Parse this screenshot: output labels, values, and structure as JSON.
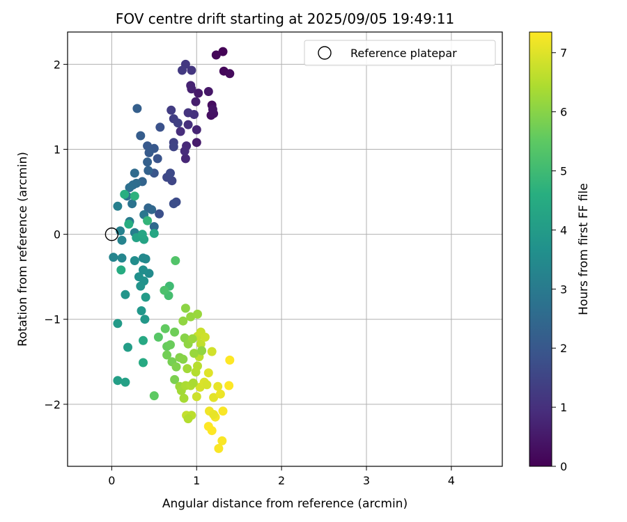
{
  "chart_data": {
    "type": "scatter",
    "title": "FOV centre drift starting at 2025/09/05 19:49:11",
    "xlabel": "Angular distance from reference (arcmin)",
    "ylabel": "Rotation from reference (arcmin)",
    "xlim": [
      -0.52,
      4.6
    ],
    "ylim": [
      -2.73,
      2.38
    ],
    "xticks": [
      0,
      1,
      2,
      3,
      4
    ],
    "yticks": [
      -2,
      -1,
      0,
      1,
      2
    ],
    "xtick_labels": [
      "0",
      "1",
      "2",
      "3",
      "4"
    ],
    "ytick_labels": [
      "−2",
      "−1",
      "0",
      "1",
      "2"
    ],
    "grid": true,
    "legend": {
      "position": "top-right",
      "entries": [
        {
          "label": "Reference platepar",
          "marker": "open-circle"
        }
      ]
    },
    "reference_point": {
      "x": 0,
      "y": 0,
      "label": "Reference platepar"
    },
    "colorbar": {
      "label": "Hours from first FF file",
      "colormap": "viridis",
      "range": [
        0,
        7.35
      ],
      "ticks": [
        0,
        1,
        2,
        3,
        4,
        5,
        6,
        7
      ],
      "tick_labels": [
        "0",
        "1",
        "2",
        "3",
        "4",
        "5",
        "6",
        "7"
      ]
    },
    "series": [
      {
        "name": "FOV centre drift",
        "points": [
          [
            1.31,
            2.15,
            0.05
          ],
          [
            1.23,
            2.11,
            0.1
          ],
          [
            1.32,
            1.92,
            0.15
          ],
          [
            1.39,
            1.89,
            0.2
          ],
          [
            1.18,
            1.52,
            0.25
          ],
          [
            1.17,
            1.4,
            0.3
          ],
          [
            1.2,
            1.42,
            0.35
          ],
          [
            1.19,
            1.47,
            0.4
          ],
          [
            1.14,
            1.68,
            0.45
          ],
          [
            1.02,
            1.66,
            0.5
          ],
          [
            1.0,
            1.08,
            0.55
          ],
          [
            0.99,
            1.56,
            0.6
          ],
          [
            0.94,
            1.71,
            0.65
          ],
          [
            0.93,
            1.75,
            0.7
          ],
          [
            1.0,
            1.23,
            0.75
          ],
          [
            0.87,
            0.89,
            0.8
          ],
          [
            0.88,
            1.04,
            0.85
          ],
          [
            0.86,
            0.98,
            0.9
          ],
          [
            0.81,
            1.21,
            0.95
          ],
          [
            0.9,
            1.29,
            1.0
          ],
          [
            0.97,
            1.41,
            1.05
          ],
          [
            0.9,
            1.43,
            1.1
          ],
          [
            0.94,
            1.93,
            1.15
          ],
          [
            0.87,
            2.0,
            1.2
          ],
          [
            0.83,
            1.93,
            1.25
          ],
          [
            0.7,
            1.46,
            1.3
          ],
          [
            0.73,
            1.36,
            1.35
          ],
          [
            0.78,
            1.31,
            1.4
          ],
          [
            0.73,
            1.08,
            1.45
          ],
          [
            0.73,
            1.03,
            1.5
          ],
          [
            0.71,
            0.63,
            1.55
          ],
          [
            0.65,
            0.67,
            1.6
          ],
          [
            0.69,
            0.72,
            1.65
          ],
          [
            0.76,
            0.38,
            1.7
          ],
          [
            0.73,
            0.36,
            1.75
          ],
          [
            0.56,
            0.24,
            1.8
          ],
          [
            0.57,
            1.26,
            1.85
          ],
          [
            0.54,
            0.89,
            1.9
          ],
          [
            0.5,
            0.72,
            1.95
          ],
          [
            0.5,
            1.01,
            2.0
          ],
          [
            0.42,
            1.04,
            2.05
          ],
          [
            0.44,
            0.96,
            2.1
          ],
          [
            0.34,
            1.16,
            2.15
          ],
          [
            0.3,
            1.48,
            2.2
          ],
          [
            0.42,
            0.85,
            2.25
          ],
          [
            0.43,
            0.75,
            2.3
          ],
          [
            0.36,
            0.62,
            2.35
          ],
          [
            0.43,
            0.31,
            2.4
          ],
          [
            0.47,
            0.29,
            2.45
          ],
          [
            0.5,
            0.09,
            2.5
          ],
          [
            0.27,
            0.72,
            2.55
          ],
          [
            0.29,
            0.6,
            2.6
          ],
          [
            0.25,
            0.58,
            2.65
          ],
          [
            0.21,
            0.55,
            2.7
          ],
          [
            0.18,
            0.45,
            2.75
          ],
          [
            0.24,
            0.36,
            2.8
          ],
          [
            0.38,
            0.23,
            2.9
          ],
          [
            0.21,
            0.15,
            3.0
          ],
          [
            0.27,
            0.02,
            3.1
          ],
          [
            0.07,
            0.33,
            3.15
          ],
          [
            0.1,
            0.04,
            3.2
          ],
          [
            0.12,
            -0.07,
            3.25
          ],
          [
            0.02,
            -0.27,
            3.3
          ],
          [
            0.12,
            -0.28,
            3.35
          ],
          [
            0.37,
            -0.28,
            3.4
          ],
          [
            0.4,
            -0.29,
            3.45
          ],
          [
            0.44,
            -0.46,
            3.5
          ],
          [
            0.27,
            -0.31,
            3.55
          ],
          [
            0.37,
            -0.42,
            3.6
          ],
          [
            0.32,
            -0.5,
            3.65
          ],
          [
            0.38,
            -0.55,
            3.7
          ],
          [
            0.34,
            -0.61,
            3.75
          ],
          [
            0.16,
            -0.71,
            3.8
          ],
          [
            0.35,
            -0.9,
            3.85
          ],
          [
            0.39,
            -1.0,
            3.9
          ],
          [
            0.07,
            -1.05,
            3.95
          ],
          [
            0.4,
            -0.74,
            4.0
          ],
          [
            0.19,
            -1.33,
            4.05
          ],
          [
            0.07,
            -1.72,
            4.1
          ],
          [
            0.16,
            -1.74,
            4.15
          ],
          [
            0.29,
            -0.04,
            4.2
          ],
          [
            0.38,
            -0.06,
            4.25
          ],
          [
            0.36,
            0.0,
            4.3
          ],
          [
            0.5,
            0.01,
            4.35
          ],
          [
            0.37,
            -1.25,
            4.4
          ],
          [
            0.37,
            -1.51,
            4.45
          ],
          [
            0.11,
            -0.42,
            4.5
          ],
          [
            0.2,
            0.12,
            4.55
          ],
          [
            0.15,
            0.47,
            4.6
          ],
          [
            0.27,
            0.45,
            4.7
          ],
          [
            0.42,
            0.16,
            4.8
          ],
          [
            0.68,
            -0.61,
            5.0
          ],
          [
            0.67,
            -0.72,
            5.1
          ],
          [
            0.62,
            -0.66,
            5.2
          ],
          [
            0.75,
            -0.31,
            5.3
          ],
          [
            0.55,
            -1.21,
            5.4
          ],
          [
            0.5,
            -1.9,
            5.5
          ],
          [
            0.63,
            -1.11,
            5.55
          ],
          [
            0.65,
            -1.32,
            5.6
          ],
          [
            0.69,
            -1.3,
            5.65
          ],
          [
            0.74,
            -1.15,
            5.7
          ],
          [
            0.65,
            -1.42,
            5.75
          ],
          [
            0.71,
            -1.5,
            5.8
          ],
          [
            0.74,
            -1.71,
            5.85
          ],
          [
            0.76,
            -1.56,
            5.9
          ],
          [
            0.8,
            -1.45,
            5.95
          ],
          [
            0.86,
            -1.22,
            6.0
          ],
          [
            0.87,
            -0.87,
            6.05
          ],
          [
            0.84,
            -1.02,
            6.1
          ],
          [
            0.93,
            -0.97,
            6.15
          ],
          [
            1.01,
            -0.94,
            6.2
          ],
          [
            0.8,
            -1.79,
            6.25
          ],
          [
            0.82,
            -1.84,
            6.3
          ],
          [
            0.85,
            -1.93,
            6.35
          ],
          [
            0.87,
            -1.78,
            6.4
          ],
          [
            0.93,
            -1.78,
            6.45
          ],
          [
            0.99,
            -1.62,
            6.5
          ],
          [
            1.01,
            -1.55,
            6.55
          ],
          [
            1.03,
            -1.44,
            6.6
          ],
          [
            1.05,
            -1.29,
            6.65
          ],
          [
            1.01,
            -1.2,
            6.7
          ],
          [
            1.05,
            -1.15,
            6.75
          ],
          [
            1.1,
            -1.21,
            6.8
          ],
          [
            1.18,
            -1.38,
            6.85
          ],
          [
            1.04,
            -1.8,
            6.9
          ],
          [
            1.09,
            -1.74,
            6.95
          ],
          [
            1.14,
            -1.63,
            7.0
          ],
          [
            1.2,
            -1.92,
            7.05
          ],
          [
            1.25,
            -1.79,
            7.1
          ],
          [
            1.28,
            -1.88,
            7.15
          ],
          [
            1.15,
            -2.08,
            7.2
          ],
          [
            1.22,
            -2.15,
            7.25
          ],
          [
            1.26,
            -2.52,
            7.3
          ],
          [
            1.3,
            -2.43,
            7.3
          ],
          [
            1.14,
            -2.26,
            7.35
          ],
          [
            1.18,
            -2.31,
            7.35
          ],
          [
            1.38,
            -1.78,
            7.35
          ],
          [
            1.39,
            -1.48,
            7.35
          ],
          [
            1.31,
            -2.08,
            7.3
          ],
          [
            0.88,
            -2.13,
            6.7
          ],
          [
            0.94,
            -2.13,
            6.6
          ],
          [
            0.9,
            -2.17,
            6.5
          ],
          [
            1.0,
            -1.91,
            6.8
          ],
          [
            0.96,
            -1.75,
            6.4
          ],
          [
            0.89,
            -1.58,
            6.3
          ],
          [
            0.97,
            -1.4,
            6.2
          ],
          [
            1.06,
            -1.37,
            6.1
          ],
          [
            0.84,
            -1.47,
            6.0
          ],
          [
            0.9,
            -1.29,
            6.1
          ],
          [
            0.95,
            -1.23,
            6.2
          ],
          [
            1.12,
            -1.77,
            6.9
          ],
          [
            1.2,
            -2.12,
            7.1
          ]
        ]
      }
    ]
  }
}
